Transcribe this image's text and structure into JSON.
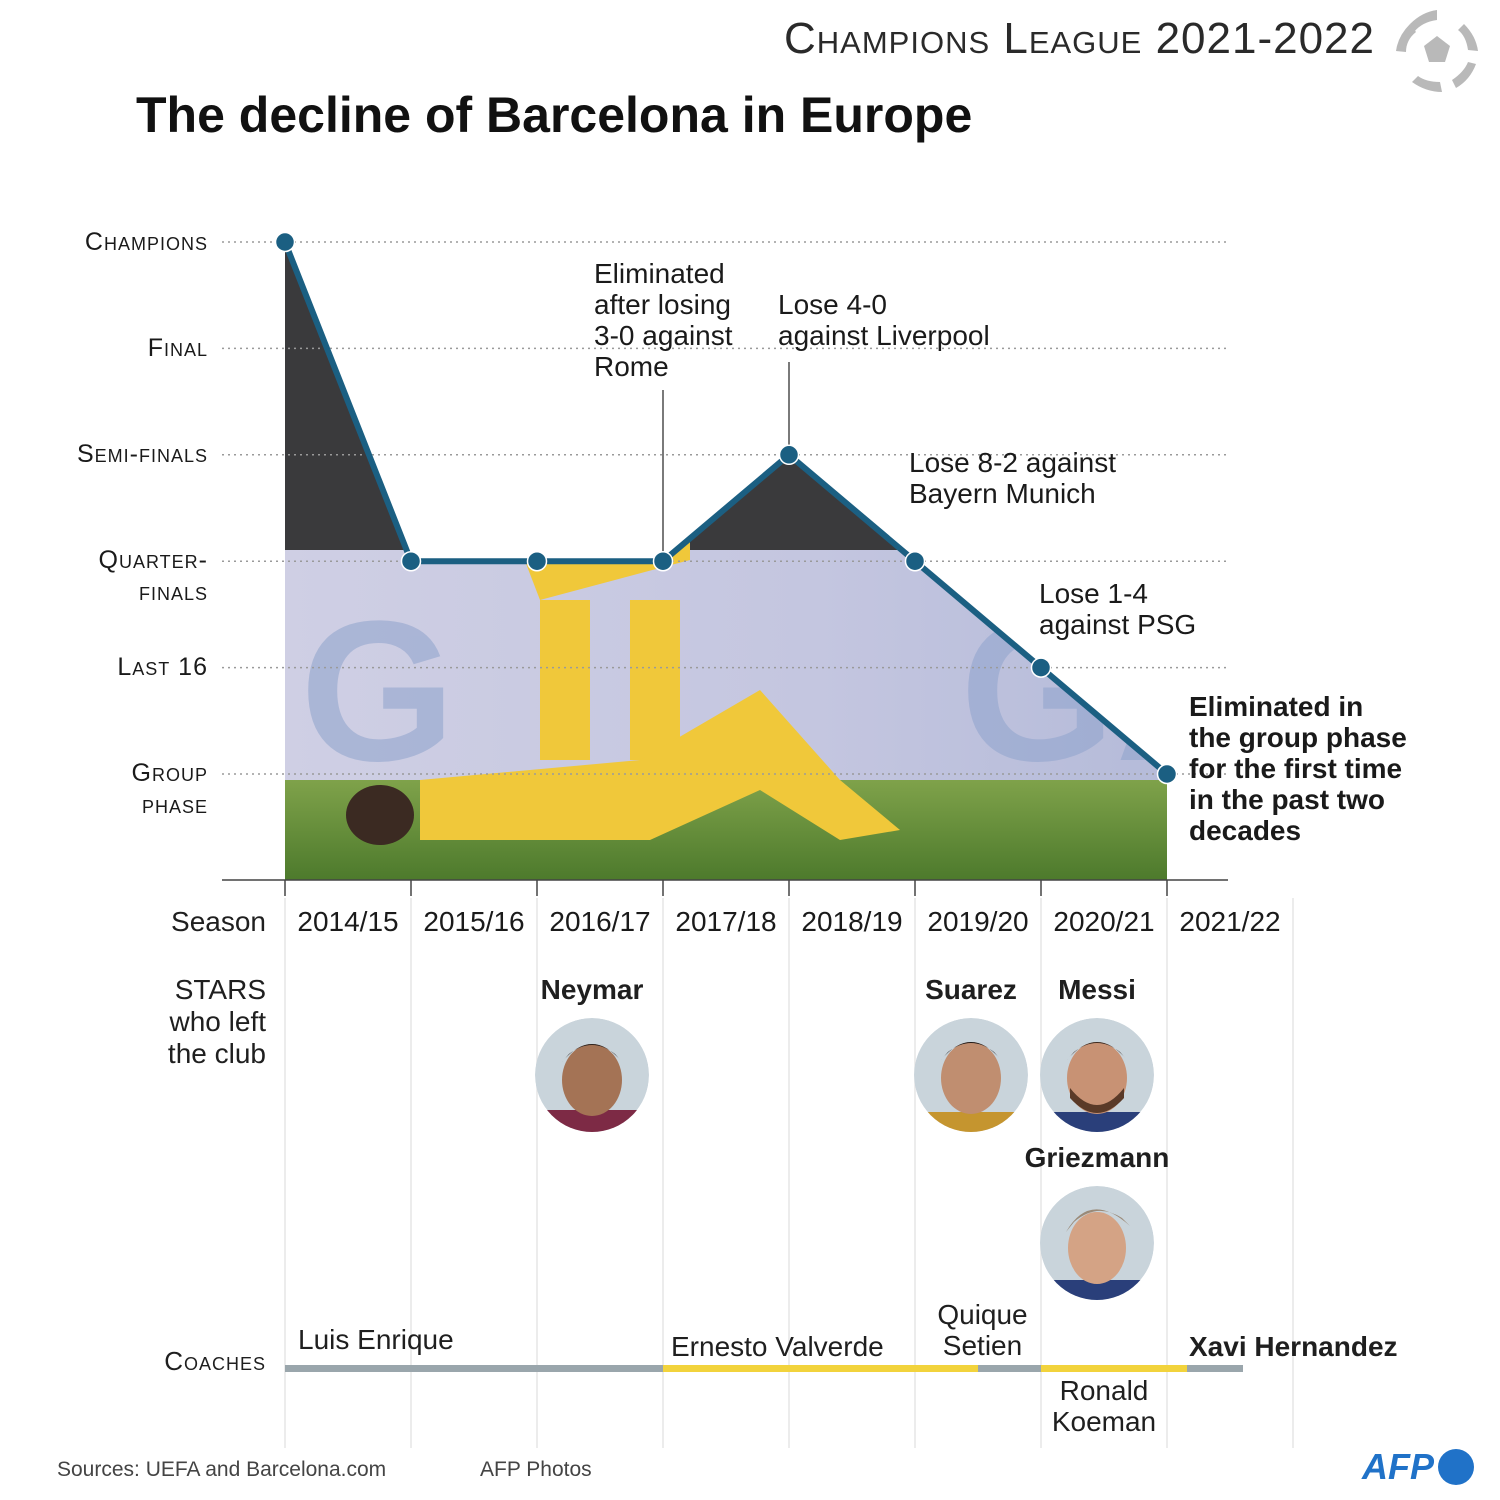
{
  "header": {
    "series": "Champions League 2021-2022",
    "title": "The decline of Barcelona in Europe"
  },
  "colors": {
    "line": "#1b5f82",
    "grid": "#9a9a9a",
    "coach_gray": "#9aa6ac",
    "coach_yellow": "#f2d33c",
    "afp_blue": "#2072c8"
  },
  "icons": {
    "header": "soccer-ball-icon",
    "logo": "afp-logo"
  },
  "chart_data": {
    "type": "line",
    "title": "The decline of Barcelona in Europe",
    "x_label": "Season",
    "categories": [
      "2014/15",
      "2015/16",
      "2016/17",
      "2017/18",
      "2018/19",
      "2019/20",
      "2020/21",
      "2021/22"
    ],
    "y_levels": [
      {
        "label": "Champions",
        "value": 6
      },
      {
        "label": "Final",
        "value": 5
      },
      {
        "label": "Semi-finals",
        "value": 4
      },
      {
        "label": "Quarter-finals",
        "value": 3
      },
      {
        "label": "Last 16",
        "value": 2
      },
      {
        "label": "Group phase",
        "value": 1
      }
    ],
    "values": [
      6,
      3,
      3,
      3,
      4,
      3,
      2,
      1
    ],
    "ylim": [
      1,
      6
    ],
    "grid": true,
    "annotations": [
      {
        "season": "2017/18",
        "lines": [
          "Eliminated",
          "after losing",
          "3-0 against",
          "Rome"
        ]
      },
      {
        "season": "2018/19",
        "lines": [
          "Lose 4-0",
          "against Liverpool"
        ]
      },
      {
        "season": "2019/20",
        "lines": [
          "Lose 8-2 against",
          "Bayern Munich"
        ]
      },
      {
        "season": "2020/21",
        "lines": [
          "Lose 1-4",
          "against PSG"
        ]
      },
      {
        "season": "2021/22",
        "lines": [
          "Eliminated in",
          "the group phase",
          "for the first time",
          "in the past two",
          "decades"
        ],
        "bold": true
      }
    ]
  },
  "stars": {
    "label_lines": [
      "STARS",
      "who left",
      "the club"
    ],
    "items": [
      {
        "name": "Neymar",
        "season": "2016/17"
      },
      {
        "name": "Suarez",
        "season": "2019/20"
      },
      {
        "name": "Messi",
        "season": "2020/21"
      },
      {
        "name": "Griezmann",
        "season": "2020/21"
      }
    ]
  },
  "coaches": {
    "label": "Coaches",
    "items": [
      {
        "name_lines": [
          "Luis Enrique"
        ]
      },
      {
        "name_lines": [
          "Ernesto Valverde"
        ]
      },
      {
        "name_lines": [
          "Quique",
          "Setien"
        ]
      },
      {
        "name_lines": [
          "Ronald",
          "Koeman"
        ]
      },
      {
        "name_lines": [
          "Xavi Hernandez"
        ],
        "bold": true
      }
    ]
  },
  "footer": {
    "sources": "Sources: UEFA and Barcelona.com",
    "photos": "AFP Photos",
    "logo_text": "AFP"
  }
}
